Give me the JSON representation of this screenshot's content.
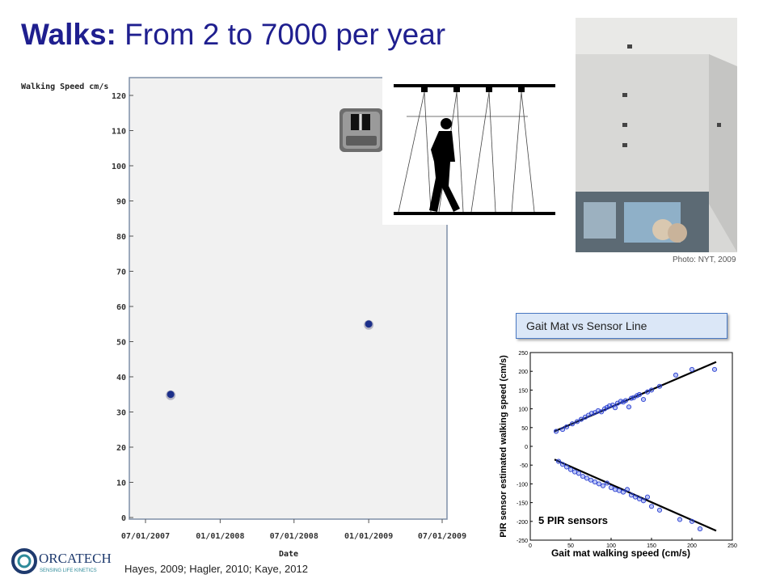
{
  "title": {
    "bold": "Walks:",
    "rest": " From 2 to 7000 per year"
  },
  "photo_credit": "Photo: NYT, 2009",
  "gait_label": "Gait Mat vs Sensor Line",
  "references": "Hayes, 2009; Hagler, 2010; Kaye, 2012",
  "logo": {
    "name": "ORCATECH",
    "tagline": "SENSING LIFE KINETICS"
  },
  "chart_data": [
    {
      "type": "scatter",
      "title": "",
      "ylabel": "Walking Speed cm/s",
      "xlabel": "Date",
      "x_ticks": [
        "07/01/2007",
        "01/01/2008",
        "07/01/2008",
        "01/01/2009",
        "07/01/2009"
      ],
      "y_ticks": [
        0,
        10,
        20,
        30,
        40,
        50,
        60,
        70,
        80,
        90,
        100,
        110,
        120
      ],
      "xlim": [
        "07/01/2007",
        "07/01/2009"
      ],
      "ylim": [
        0,
        120
      ],
      "grid": false,
      "point_color": "#1c2f8a",
      "points": [
        {
          "x": "09/01/2007",
          "y": 35
        },
        {
          "x": "01/01/2009",
          "y": 55
        }
      ]
    },
    {
      "type": "scatter",
      "title": "",
      "ylabel": "PIR sensor estimated walking speed (cm/s)",
      "xlabel": "Gait mat walking speed (cm/s)",
      "annotation": "5 PIR sensors",
      "x_ticks": [
        0,
        50,
        100,
        150,
        200,
        250
      ],
      "y_ticks": [
        250,
        200,
        150,
        100,
        50,
        0,
        -50,
        -100,
        -150,
        -200,
        -250
      ],
      "xlim": [
        0,
        250
      ],
      "ylim": [
        -250,
        250
      ],
      "point_color": "#2a3fd0",
      "fit_lines": [
        {
          "from": [
            30,
            40
          ],
          "to": [
            230,
            225
          ]
        },
        {
          "from": [
            30,
            -35
          ],
          "to": [
            230,
            -225
          ]
        }
      ],
      "points": [
        [
          32,
          40
        ],
        [
          40,
          45
        ],
        [
          45,
          52
        ],
        [
          52,
          60
        ],
        [
          58,
          66
        ],
        [
          63,
          72
        ],
        [
          68,
          78
        ],
        [
          72,
          83
        ],
        [
          76,
          88
        ],
        [
          80,
          90
        ],
        [
          84,
          95
        ],
        [
          88,
          92
        ],
        [
          92,
          100
        ],
        [
          95,
          104
        ],
        [
          98,
          108
        ],
        [
          102,
          110
        ],
        [
          105,
          103
        ],
        [
          108,
          115
        ],
        [
          112,
          120
        ],
        [
          115,
          118
        ],
        [
          118,
          122
        ],
        [
          122,
          105
        ],
        [
          125,
          128
        ],
        [
          128,
          130
        ],
        [
          132,
          135
        ],
        [
          135,
          138
        ],
        [
          140,
          125
        ],
        [
          145,
          145
        ],
        [
          150,
          150
        ],
        [
          160,
          160
        ],
        [
          180,
          190
        ],
        [
          200,
          205
        ],
        [
          228,
          205
        ],
        [
          35,
          -40
        ],
        [
          40,
          -48
        ],
        [
          45,
          -55
        ],
        [
          50,
          -62
        ],
        [
          55,
          -68
        ],
        [
          60,
          -72
        ],
        [
          65,
          -80
        ],
        [
          70,
          -85
        ],
        [
          75,
          -90
        ],
        [
          80,
          -95
        ],
        [
          85,
          -100
        ],
        [
          90,
          -105
        ],
        [
          95,
          -98
        ],
        [
          100,
          -110
        ],
        [
          105,
          -115
        ],
        [
          110,
          -118
        ],
        [
          115,
          -122
        ],
        [
          120,
          -115
        ],
        [
          125,
          -130
        ],
        [
          130,
          -135
        ],
        [
          135,
          -140
        ],
        [
          140,
          -145
        ],
        [
          145,
          -135
        ],
        [
          150,
          -160
        ],
        [
          160,
          -170
        ],
        [
          185,
          -195
        ],
        [
          200,
          -200
        ],
        [
          210,
          -220
        ]
      ]
    }
  ]
}
